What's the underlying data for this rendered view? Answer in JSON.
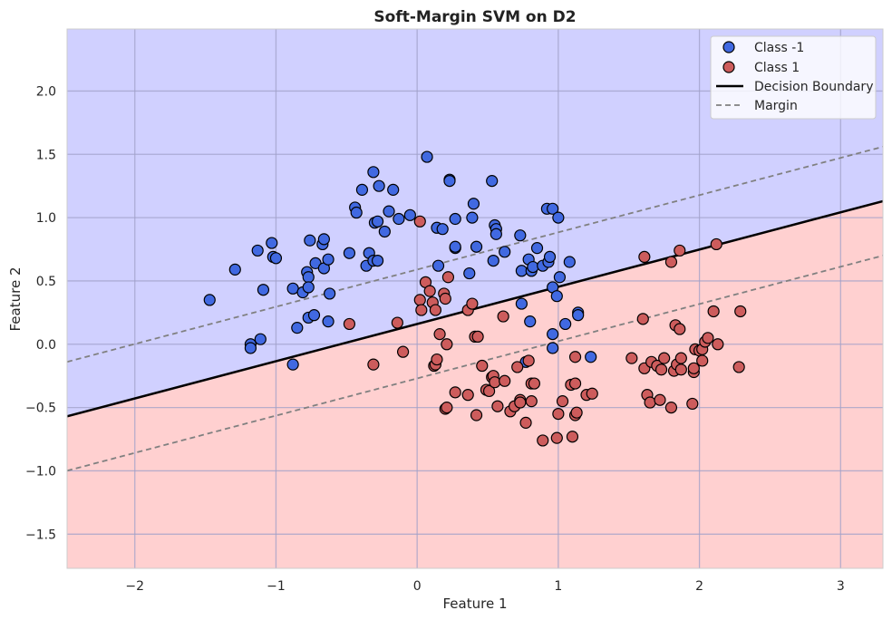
{
  "chart_data": {
    "type": "scatter",
    "title": "Soft-Margin SVM on D2",
    "xlabel": "Feature 1",
    "ylabel": "Feature 2",
    "xlim": [
      -2.48,
      3.3
    ],
    "ylim": [
      -1.77,
      2.49
    ],
    "xticks": [
      -2,
      -1,
      0,
      1,
      2,
      3
    ],
    "yticks": [
      -1.5,
      -1.0,
      -0.5,
      0.0,
      0.5,
      1.0,
      1.5,
      2.0
    ],
    "xtick_labels": [
      "−2",
      "−1",
      "0",
      "1",
      "2",
      "3"
    ],
    "ytick_labels": [
      "−1.5",
      "−1.0",
      "−0.5",
      "0.0",
      "0.5",
      "1.0",
      "1.5",
      "2.0"
    ],
    "grid": true,
    "legend_position": "top-right",
    "region_colors": {
      "class_neg": "#d0d0ff",
      "class_pos": "#ffd0d0"
    },
    "decision_boundary": {
      "name": "Decision Boundary",
      "slope": 0.294,
      "intercept": 0.16,
      "color": "#000000",
      "style": "solid"
    },
    "margin": {
      "name": "Margin",
      "offset": 0.43,
      "color": "#808080",
      "style": "dashed"
    },
    "series": [
      {
        "name": "Class -1",
        "color": "#4169e1",
        "points": [
          [
            -1.47,
            0.35
          ],
          [
            -1.29,
            0.59
          ],
          [
            -1.13,
            0.74
          ],
          [
            -1.09,
            0.43
          ],
          [
            -1.18,
            0.0
          ],
          [
            -1.18,
            -0.03
          ],
          [
            -1.11,
            0.04
          ],
          [
            -1.03,
            0.8
          ],
          [
            -1.02,
            0.69
          ],
          [
            -1.0,
            0.68
          ],
          [
            -0.88,
            0.44
          ],
          [
            -0.88,
            -0.16
          ],
          [
            -0.85,
            0.13
          ],
          [
            -0.81,
            0.41
          ],
          [
            -0.78,
            0.57
          ],
          [
            -0.77,
            0.53
          ],
          [
            -0.77,
            0.45
          ],
          [
            -0.76,
            0.82
          ],
          [
            -0.77,
            0.21
          ],
          [
            -0.73,
            0.23
          ],
          [
            -0.72,
            0.64
          ],
          [
            -0.67,
            0.79
          ],
          [
            -0.66,
            0.83
          ],
          [
            -0.66,
            0.6
          ],
          [
            -0.63,
            0.67
          ],
          [
            -0.62,
            0.4
          ],
          [
            -0.63,
            0.18
          ],
          [
            -0.48,
            0.72
          ],
          [
            -0.44,
            1.08
          ],
          [
            -0.43,
            1.04
          ],
          [
            -0.39,
            1.22
          ],
          [
            -0.36,
            0.62
          ],
          [
            -0.34,
            0.72
          ],
          [
            -0.31,
            0.66
          ],
          [
            -0.31,
            1.36
          ],
          [
            -0.3,
            0.96
          ],
          [
            -0.28,
            0.97
          ],
          [
            -0.28,
            0.66
          ],
          [
            -0.27,
            1.25
          ],
          [
            -0.23,
            0.89
          ],
          [
            -0.2,
            1.05
          ],
          [
            -0.17,
            1.22
          ],
          [
            -0.13,
            0.99
          ],
          [
            -0.05,
            1.02
          ],
          [
            0.07,
            1.48
          ],
          [
            0.14,
            0.92
          ],
          [
            0.18,
            0.91
          ],
          [
            0.15,
            0.62
          ],
          [
            0.23,
            1.3
          ],
          [
            0.23,
            1.29
          ],
          [
            0.27,
            0.76
          ],
          [
            0.27,
            0.77
          ],
          [
            0.27,
            0.99
          ],
          [
            0.37,
            0.56
          ],
          [
            0.39,
            1.0
          ],
          [
            0.4,
            1.11
          ],
          [
            0.42,
            0.77
          ],
          [
            0.53,
            1.29
          ],
          [
            0.55,
            0.94
          ],
          [
            0.56,
            0.91
          ],
          [
            0.56,
            0.87
          ],
          [
            0.54,
            0.66
          ],
          [
            0.62,
            0.73
          ],
          [
            0.73,
            0.86
          ],
          [
            0.74,
            0.58
          ],
          [
            0.74,
            0.32
          ],
          [
            0.77,
            -0.14
          ],
          [
            0.79,
            0.67
          ],
          [
            0.8,
            0.18
          ],
          [
            0.81,
            0.58
          ],
          [
            0.82,
            0.61
          ],
          [
            0.85,
            0.76
          ],
          [
            0.89,
            0.62
          ],
          [
            0.92,
            1.07
          ],
          [
            0.93,
            0.65
          ],
          [
            0.94,
            0.69
          ],
          [
            0.96,
            1.07
          ],
          [
            0.96,
            0.45
          ],
          [
            0.96,
            0.08
          ],
          [
            0.96,
            -0.03
          ],
          [
            0.99,
            0.38
          ],
          [
            1.0,
            1.0
          ],
          [
            1.01,
            0.53
          ],
          [
            1.05,
            0.16
          ],
          [
            1.08,
            0.65
          ],
          [
            1.14,
            0.25
          ],
          [
            1.14,
            0.23
          ],
          [
            1.23,
            -0.1
          ]
        ]
      },
      {
        "name": "Class 1",
        "color": "#cd5c5c",
        "points": [
          [
            -0.48,
            0.16
          ],
          [
            -0.31,
            -0.16
          ],
          [
            -0.14,
            0.17
          ],
          [
            -0.1,
            -0.06
          ],
          [
            0.02,
            0.97
          ],
          [
            0.02,
            0.35
          ],
          [
            0.03,
            0.27
          ],
          [
            0.06,
            0.49
          ],
          [
            0.09,
            0.42
          ],
          [
            0.11,
            0.33
          ],
          [
            0.12,
            -0.17
          ],
          [
            0.13,
            -0.16
          ],
          [
            0.14,
            -0.12
          ],
          [
            0.13,
            0.27
          ],
          [
            0.16,
            0.08
          ],
          [
            0.19,
            0.4
          ],
          [
            0.2,
            0.36
          ],
          [
            0.2,
            -0.51
          ],
          [
            0.21,
            0.0
          ],
          [
            0.21,
            -0.5
          ],
          [
            0.22,
            0.53
          ],
          [
            0.27,
            -0.38
          ],
          [
            0.36,
            0.27
          ],
          [
            0.36,
            -0.4
          ],
          [
            0.39,
            0.32
          ],
          [
            0.41,
            0.06
          ],
          [
            0.42,
            -0.56
          ],
          [
            0.43,
            0.06
          ],
          [
            0.46,
            -0.17
          ],
          [
            0.49,
            -0.36
          ],
          [
            0.51,
            -0.37
          ],
          [
            0.53,
            -0.26
          ],
          [
            0.54,
            -0.25
          ],
          [
            0.55,
            -0.3
          ],
          [
            0.57,
            -0.49
          ],
          [
            0.61,
            0.22
          ],
          [
            0.62,
            -0.29
          ],
          [
            0.66,
            -0.53
          ],
          [
            0.69,
            -0.49
          ],
          [
            0.71,
            -0.18
          ],
          [
            0.73,
            -0.44
          ],
          [
            0.73,
            -0.46
          ],
          [
            0.77,
            -0.62
          ],
          [
            0.79,
            -0.13
          ],
          [
            0.81,
            -0.31
          ],
          [
            0.81,
            -0.45
          ],
          [
            0.83,
            -0.31
          ],
          [
            0.89,
            -0.76
          ],
          [
            0.99,
            -0.74
          ],
          [
            1.0,
            -0.55
          ],
          [
            1.03,
            -0.45
          ],
          [
            1.09,
            -0.32
          ],
          [
            1.1,
            -0.73
          ],
          [
            1.12,
            -0.31
          ],
          [
            1.12,
            -0.1
          ],
          [
            1.12,
            -0.56
          ],
          [
            1.13,
            -0.54
          ],
          [
            1.2,
            -0.4
          ],
          [
            1.24,
            -0.39
          ],
          [
            1.52,
            -0.11
          ],
          [
            1.6,
            0.2
          ],
          [
            1.61,
            -0.19
          ],
          [
            1.61,
            0.69
          ],
          [
            1.63,
            -0.4
          ],
          [
            1.65,
            -0.46
          ],
          [
            1.66,
            -0.14
          ],
          [
            1.7,
            -0.17
          ],
          [
            1.72,
            -0.44
          ],
          [
            1.73,
            -0.2
          ],
          [
            1.75,
            -0.11
          ],
          [
            1.8,
            0.65
          ],
          [
            1.8,
            -0.5
          ],
          [
            1.82,
            -0.21
          ],
          [
            1.83,
            0.15
          ],
          [
            1.84,
            -0.16
          ],
          [
            1.86,
            0.74
          ],
          [
            1.86,
            0.12
          ],
          [
            1.87,
            -0.2
          ],
          [
            1.87,
            -0.11
          ],
          [
            1.95,
            -0.47
          ],
          [
            1.96,
            -0.22
          ],
          [
            1.96,
            -0.19
          ],
          [
            1.97,
            -0.04
          ],
          [
            2.0,
            -0.05
          ],
          [
            2.02,
            -0.13
          ],
          [
            2.02,
            -0.04
          ],
          [
            2.04,
            0.02
          ],
          [
            2.06,
            0.05
          ],
          [
            2.1,
            0.26
          ],
          [
            2.12,
            0.79
          ],
          [
            2.13,
            -0.0
          ],
          [
            2.28,
            -0.18
          ],
          [
            2.29,
            0.26
          ]
        ]
      }
    ]
  }
}
